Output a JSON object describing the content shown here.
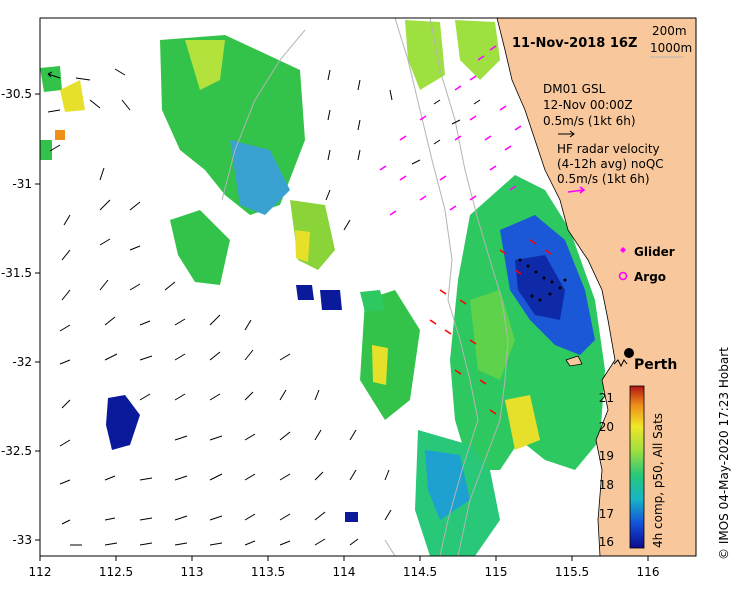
{
  "title": "11-Nov-2018 16Z",
  "legend": {
    "contour1": "200m",
    "contour2": "1000m"
  },
  "model": {
    "name": "DM01 GSL",
    "time": "12-Nov 00:00Z",
    "scale": "0.5m/s (1kt 6h)"
  },
  "radar": {
    "line1": "HF radar velocity",
    "line2": "(4-12h avg) noQC",
    "scale": "0.5m/s (1kt 6h)"
  },
  "markers": {
    "glider": "Glider",
    "argo": "Argo"
  },
  "city": "Perth",
  "colorbar": {
    "label": "4h comp, p50, All Sats",
    "ticks": [
      "21",
      "20",
      "19",
      "18",
      "17",
      "16"
    ]
  },
  "credit": "© IMOS 04-May-2020 17:23 Hobart",
  "axes": {
    "x_ticks": [
      "112",
      "112.5",
      "113",
      "113.5",
      "114",
      "114.5",
      "115",
      "115.5",
      "116"
    ],
    "y_ticks": [
      "-30.5",
      "-31",
      "-31.5",
      "-32",
      "-32.5",
      "-33"
    ]
  },
  "colors": {
    "land": "#f8c89c",
    "model_arrow": "#000000",
    "radar_arrow": "#ff00ff",
    "glider": "#ff00ff",
    "drifter": "#ff0000"
  }
}
